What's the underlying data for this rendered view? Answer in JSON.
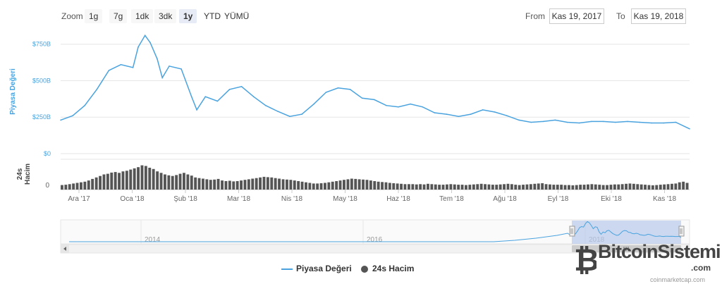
{
  "toolbar": {
    "zoom_label": "Zoom",
    "buttons": [
      "1g",
      "7g",
      "1dk",
      "3dk",
      "1y",
      "YTD",
      "YÜMÜ"
    ],
    "active_button": "1y",
    "from_label": "From",
    "from_value": "Kas 19, 2017",
    "to_label": "To",
    "to_value": "Kas 19, 2018"
  },
  "colors": {
    "series_line": "#4aa3df",
    "volume_bar": "#555555",
    "navigator_fill": "#b7c9ea",
    "grid": "#e6e6e6"
  },
  "legend": {
    "series1": "Piyasa Değeri",
    "series2": "24s Hacim"
  },
  "credit": "coinmarketcap.com",
  "watermark": {
    "text": "BitcoinSistemi",
    "tld": ".com",
    "icon": "bitcoin-logo-icon"
  },
  "chart_data": {
    "type": "line",
    "y_axis_title": "Piyasa Değeri",
    "volume_axis_title": "24s\nHacim",
    "y_ticks": [
      "$0",
      "$250B",
      "$500B",
      "$750B"
    ],
    "y_range": [
      0,
      850
    ],
    "volume_ticks": [
      "0"
    ],
    "x_ticks": [
      "Ara '17",
      "Oca '18",
      "Şub '18",
      "Mar '18",
      "Nis '18",
      "May '18",
      "Haz '18",
      "Tem '18",
      "Ağu '18",
      "Eyl '18",
      "Eki '18",
      "Kas '18"
    ],
    "navigator_ticks": [
      "2014",
      "2016",
      "2018"
    ],
    "series": [
      {
        "name": "Piyasa Değeri",
        "unit": "$B",
        "x": [
          "2017-11-19",
          "2017-11-26",
          "2017-12-03",
          "2017-12-10",
          "2017-12-17",
          "2017-12-24",
          "2017-12-31",
          "2018-01-03",
          "2018-01-07",
          "2018-01-10",
          "2018-01-14",
          "2018-01-17",
          "2018-01-21",
          "2018-01-28",
          "2018-02-03",
          "2018-02-06",
          "2018-02-11",
          "2018-02-18",
          "2018-02-25",
          "2018-03-04",
          "2018-03-11",
          "2018-03-18",
          "2018-03-25",
          "2018-04-01",
          "2018-04-08",
          "2018-04-15",
          "2018-04-22",
          "2018-04-29",
          "2018-05-06",
          "2018-05-13",
          "2018-05-20",
          "2018-05-27",
          "2018-06-03",
          "2018-06-10",
          "2018-06-17",
          "2018-06-24",
          "2018-07-01",
          "2018-07-08",
          "2018-07-15",
          "2018-07-22",
          "2018-07-29",
          "2018-08-05",
          "2018-08-12",
          "2018-08-19",
          "2018-08-26",
          "2018-09-02",
          "2018-09-09",
          "2018-09-16",
          "2018-09-23",
          "2018-09-30",
          "2018-10-07",
          "2018-10-14",
          "2018-10-21",
          "2018-10-28",
          "2018-11-04",
          "2018-11-11",
          "2018-11-19"
        ],
        "values": [
          230,
          260,
          330,
          440,
          570,
          610,
          590,
          730,
          810,
          760,
          650,
          520,
          600,
          580,
          390,
          300,
          390,
          360,
          440,
          460,
          390,
          330,
          290,
          255,
          270,
          340,
          420,
          450,
          440,
          380,
          370,
          330,
          320,
          340,
          320,
          280,
          270,
          255,
          270,
          300,
          285,
          260,
          230,
          215,
          220,
          230,
          215,
          210,
          220,
          220,
          215,
          220,
          215,
          210,
          210,
          215,
          170
        ]
      }
    ],
    "volume_series": {
      "name": "24s Hacim",
      "note": "relative daily volume, 0–100 scale, visually estimated",
      "values": [
        15,
        16,
        18,
        20,
        22,
        24,
        26,
        30,
        35,
        40,
        45,
        50,
        52,
        56,
        58,
        55,
        60,
        62,
        66,
        70,
        74,
        80,
        78,
        72,
        68,
        60,
        55,
        50,
        47,
        45,
        48,
        52,
        55,
        50,
        46,
        40,
        38,
        36,
        34,
        32,
        33,
        35,
        30,
        28,
        29,
        27,
        28,
        30,
        32,
        34,
        36,
        38,
        40,
        42,
        41,
        40,
        38,
        36,
        34,
        33,
        32,
        30,
        28,
        26,
        24,
        22,
        20,
        20,
        21,
        22,
        24,
        26,
        28,
        30,
        32,
        34,
        36,
        35,
        34,
        33,
        32,
        30,
        28,
        26,
        25,
        24,
        22,
        21,
        20,
        19,
        18,
        18,
        18,
        17,
        18,
        17,
        19,
        18,
        17,
        16,
        16,
        17,
        18,
        17,
        16,
        16,
        15,
        16,
        17,
        18,
        19,
        18,
        17,
        16,
        16,
        17,
        18,
        19,
        18,
        16,
        15,
        16,
        17,
        18,
        19,
        20,
        21,
        18,
        17,
        16,
        16,
        16,
        15,
        15,
        14,
        15,
        16,
        16,
        17,
        18,
        17,
        16,
        15,
        15,
        16,
        17,
        17,
        18,
        19,
        20,
        19,
        18,
        17,
        16,
        15,
        14,
        15,
        16,
        17,
        18,
        19,
        20,
        24,
        26,
        22
      ]
    }
  }
}
